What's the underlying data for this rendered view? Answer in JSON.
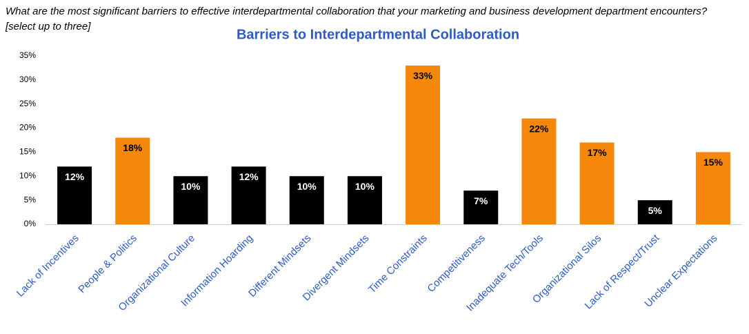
{
  "chart_data": {
    "type": "bar",
    "subtitle": "What are the most significant barriers to effective interdepartmental collaboration that your marketing and business development department encounters? [select up to three]",
    "title": "Barriers to Interdepartmental Collaboration",
    "categories": [
      "Lack of Incentives",
      "People & Politics",
      "Organizational Culture",
      "Information Hoarding",
      "Different Mindsets",
      "Divergent Mindsets",
      "Time Constraints",
      "Competitiveness",
      "Inadequate Tech/Tools",
      "Organizational Silos",
      "Lack of Respect/Trust",
      "Unclear Expectations"
    ],
    "values": [
      12,
      18,
      10,
      12,
      10,
      10,
      33,
      7,
      22,
      17,
      5,
      15
    ],
    "value_labels": [
      "12%",
      "18%",
      "10%",
      "12%",
      "10%",
      "10%",
      "33%",
      "7%",
      "22%",
      "17%",
      "5%",
      "15%"
    ],
    "colors": [
      "#000000",
      "#f5870a",
      "#000000",
      "#000000",
      "#000000",
      "#000000",
      "#f5870a",
      "#000000",
      "#f5870a",
      "#f5870a",
      "#000000",
      "#f5870a"
    ],
    "ylim": [
      0,
      35
    ],
    "yticks": [
      {
        "value": 0,
        "label": "0%"
      },
      {
        "value": 5,
        "label": "5%"
      },
      {
        "value": 10,
        "label": "10%"
      },
      {
        "value": 15,
        "label": "15%"
      },
      {
        "value": 20,
        "label": "20%"
      },
      {
        "value": 25,
        "label": "25%"
      },
      {
        "value": 30,
        "label": "30%"
      },
      {
        "value": 35,
        "label": "35%"
      }
    ],
    "grid": false
  }
}
